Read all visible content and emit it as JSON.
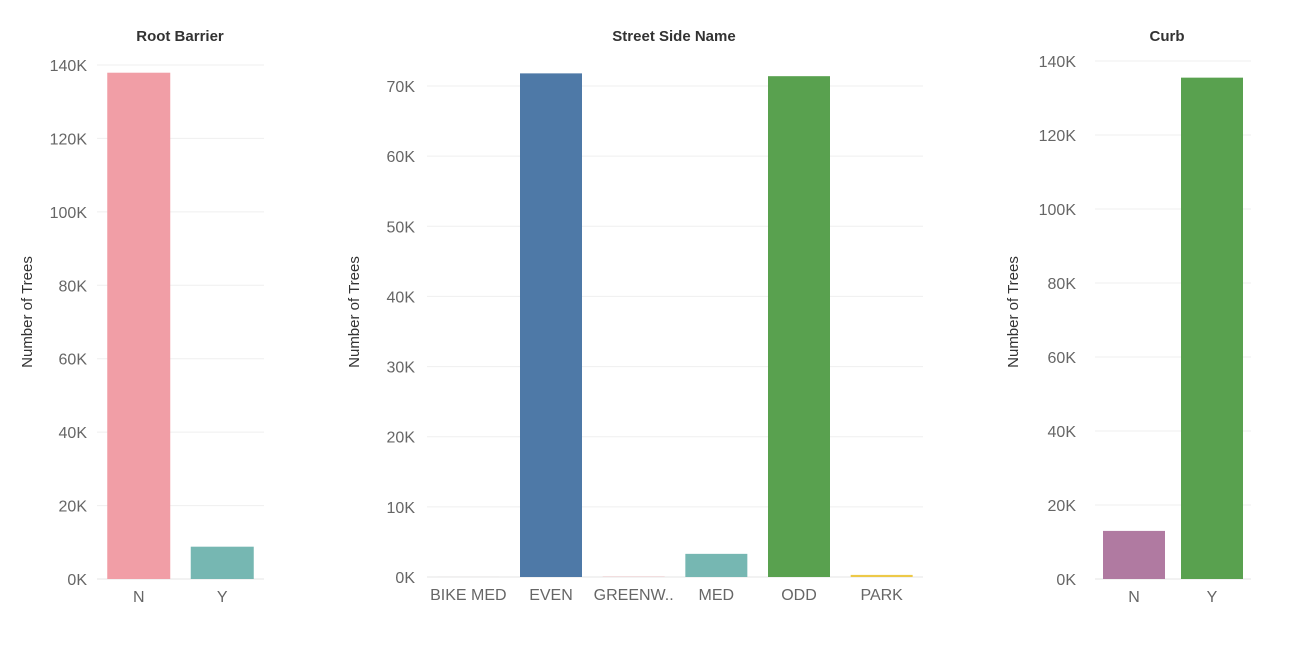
{
  "chart_data": [
    {
      "type": "bar",
      "title": "Root Barrier",
      "ylabel": "Number of Trees",
      "xlabel": "",
      "categories": [
        "N",
        "Y"
      ],
      "values": [
        137900,
        8800
      ],
      "colors": [
        "#f19ea6",
        "#76b7b2"
      ],
      "yticks": [
        0,
        20000,
        40000,
        60000,
        80000,
        100000,
        120000,
        140000
      ],
      "ytick_labels": [
        "0K",
        "20K",
        "40K",
        "60K",
        "80K",
        "100K",
        "120K",
        "140K"
      ],
      "ylim": [
        0,
        142000
      ],
      "grid": true
    },
    {
      "type": "bar",
      "title": "Street Side Name",
      "ylabel": "Number of Trees",
      "xlabel": "",
      "categories": [
        "BIKE MED",
        "EVEN",
        "GREENW..",
        "MED",
        "ODD",
        "PARK"
      ],
      "values": [
        5,
        71800,
        20,
        3300,
        71400,
        300
      ],
      "colors": [
        "#bab0ac",
        "#4e79a7",
        "#e15759",
        "#76b7b2",
        "#59a14f",
        "#edc948"
      ],
      "yticks": [
        0,
        10000,
        20000,
        30000,
        40000,
        50000,
        60000,
        70000
      ],
      "ytick_labels": [
        "0K",
        "10K",
        "20K",
        "30K",
        "40K",
        "50K",
        "60K",
        "70K"
      ],
      "ylim": [
        0,
        72500
      ],
      "grid": true
    },
    {
      "type": "bar",
      "title": "Curb",
      "ylabel": "Number of Trees",
      "xlabel": "",
      "categories": [
        "N",
        "Y"
      ],
      "values": [
        13000,
        135500
      ],
      "colors": [
        "#b07aa1",
        "#59a14f"
      ],
      "yticks": [
        0,
        20000,
        40000,
        60000,
        80000,
        100000,
        120000,
        140000
      ],
      "ytick_labels": [
        "0K",
        "20K",
        "40K",
        "60K",
        "80K",
        "100K",
        "120K",
        "140K"
      ],
      "ylim": [
        0,
        142000
      ],
      "grid": true
    }
  ]
}
